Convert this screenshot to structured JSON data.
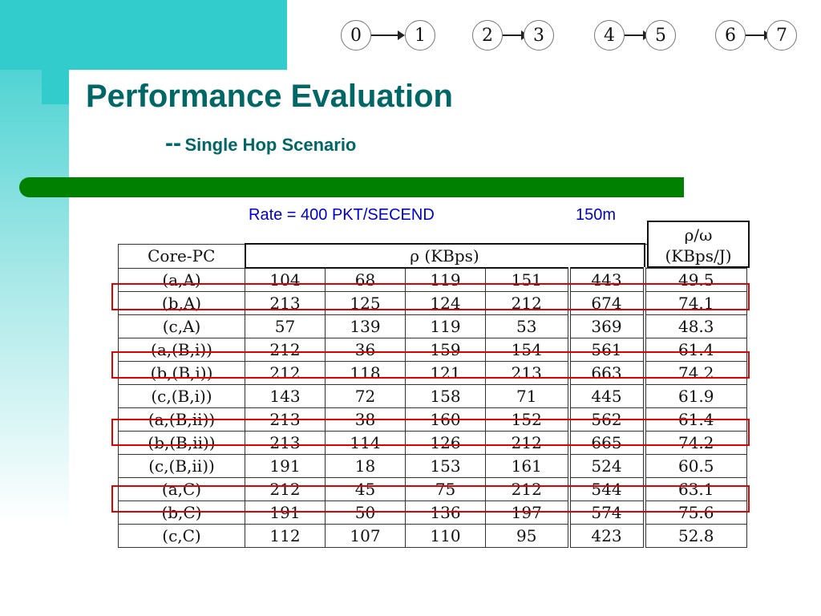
{
  "title": "Performance Evaluation",
  "subtitle": {
    "dash": "--",
    "text": "Single Hop Scenario"
  },
  "rate_label": "Rate = 400 PKT/SECEND",
  "distance_label": "150m",
  "node_pairs": [
    [
      "0",
      "1"
    ],
    [
      "2",
      "3"
    ],
    [
      "4",
      "5"
    ],
    [
      "6",
      "7"
    ]
  ],
  "table": {
    "col_header": "Core-PC",
    "rho_header": "ρ (KBps)",
    "eff_header_line1": "ρ/ω",
    "eff_header_line2": "(KBps/J)",
    "rows": [
      {
        "label": "(a,A)",
        "v": [
          "104",
          "68",
          "119",
          "151",
          "443",
          "49.5"
        ]
      },
      {
        "label": "(b,A)",
        "v": [
          "213",
          "125",
          "124",
          "212",
          "674",
          "74.1"
        ]
      },
      {
        "label": "(c,A)",
        "v": [
          "57",
          "139",
          "119",
          "53",
          "369",
          "48.3"
        ]
      },
      {
        "label": "(a,(B,i))",
        "v": [
          "212",
          "36",
          "159",
          "154",
          "561",
          "61.4"
        ]
      },
      {
        "label": "(b,(B,i))",
        "v": [
          "212",
          "118",
          "121",
          "213",
          "663",
          "74.2"
        ]
      },
      {
        "label": "(c,(B,i))",
        "v": [
          "143",
          "72",
          "158",
          "71",
          "445",
          "61.9"
        ]
      },
      {
        "label": "(a,(B,ii))",
        "v": [
          "213",
          "38",
          "160",
          "152",
          "562",
          "61.4"
        ]
      },
      {
        "label": "(b,(B,ii))",
        "v": [
          "213",
          "114",
          "126",
          "212",
          "665",
          "74.2"
        ]
      },
      {
        "label": "(c,(B,ii))",
        "v": [
          "191",
          "18",
          "153",
          "161",
          "524",
          "60.5"
        ]
      },
      {
        "label": "(a,C)",
        "v": [
          "212",
          "45",
          "75",
          "212",
          "544",
          "63.1"
        ]
      },
      {
        "label": "(b,C)",
        "v": [
          "191",
          "50",
          "136",
          "197",
          "574",
          "75.6"
        ]
      },
      {
        "label": "(c,C)",
        "v": [
          "112",
          "107",
          "110",
          "95",
          "423",
          "52.8"
        ]
      }
    ]
  },
  "highlight_color": "#e00000"
}
